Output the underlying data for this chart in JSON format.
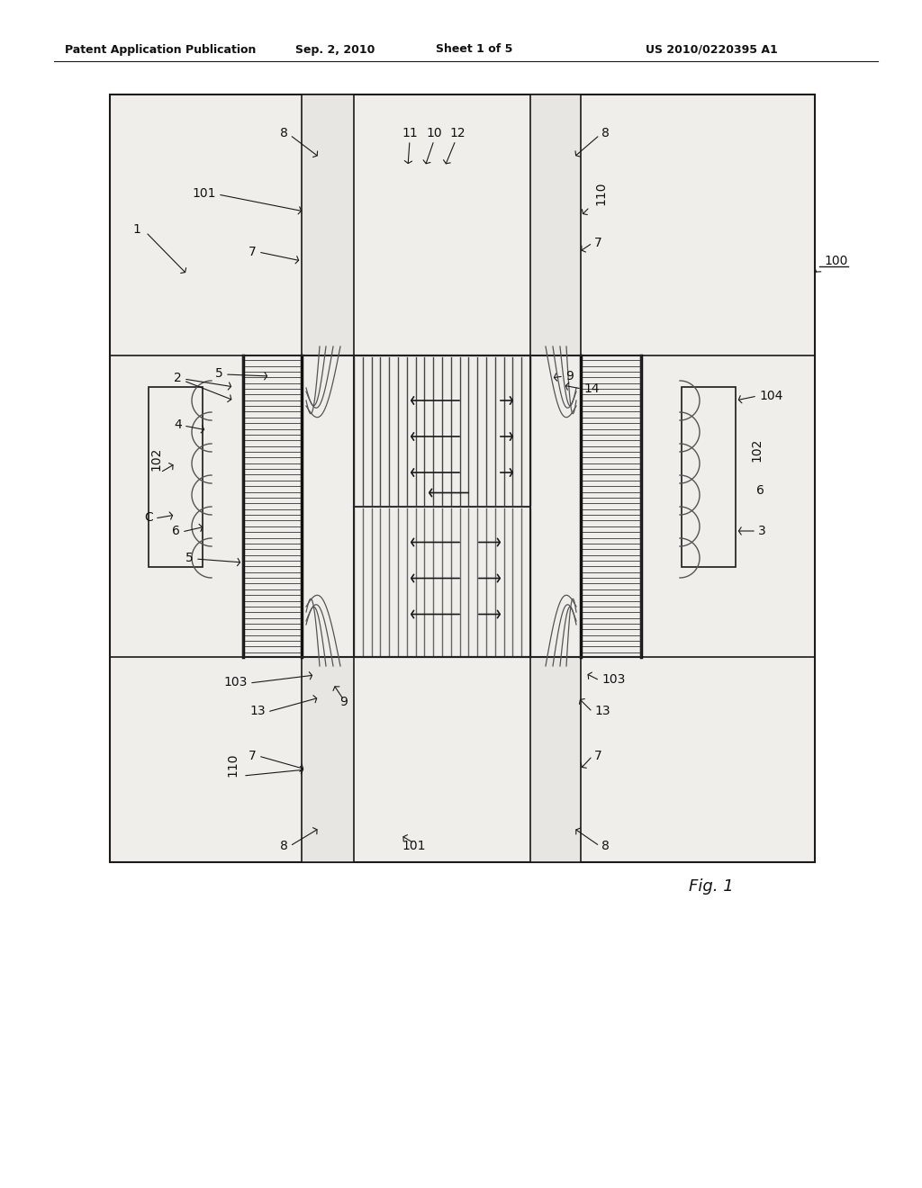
{
  "bg_color": "#f0eeea",
  "header_text": "Patent Application Publication",
  "header_date": "Sep. 2, 2010",
  "header_sheet": "Sheet 1 of 5",
  "header_patent": "US 2010/0220395 A1",
  "fig_label": "Fig. 1",
  "line_color": "#1a1a1a",
  "label_color": "#111111",
  "font_size": 10,
  "header_font_size": 9
}
